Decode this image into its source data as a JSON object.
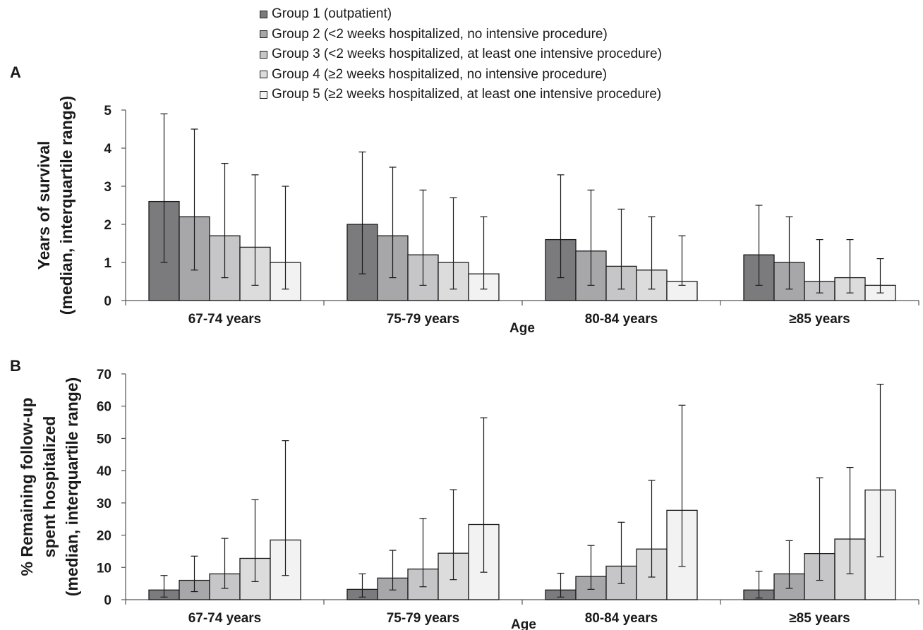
{
  "legend": [
    {
      "label": "Group 1 (outpatient)",
      "color": "#7b7b7d"
    },
    {
      "label": "Group 2 (<2 weeks hospitalized, no intensive procedure)",
      "color": "#a7a7a9"
    },
    {
      "label": "Group 3 (<2 weeks hospitalized, at least one intensive procedure)",
      "color": "#c6c6c8"
    },
    {
      "label": "Group 4 (≥2 weeks hospitalized, no intensive procedure)",
      "color": "#dcdcdd"
    },
    {
      "label": "Group 5 (≥2 weeks hospitalized, at least one intensive procedure)",
      "color": "#f2f2f2"
    }
  ],
  "panels": {
    "a": "A",
    "b": "B"
  },
  "chart_data": [
    {
      "type": "bar",
      "panel": "A",
      "categories": [
        "67-74 years",
        "75-79 years",
        "80-84 years",
        "≥85 years"
      ],
      "xlabel": "Age",
      "ylabel": [
        "Years of survival",
        "(median, interquartile range)"
      ],
      "ylim": [
        0,
        5
      ],
      "yticks": [
        0,
        1,
        2,
        3,
        4,
        5
      ],
      "grid": false,
      "legend_position": "top",
      "series": [
        {
          "name": "Group 1 (outpatient)",
          "values": [
            2.6,
            2.0,
            1.6,
            1.2
          ],
          "low": [
            1.0,
            0.7,
            0.6,
            0.4
          ],
          "high": [
            4.9,
            3.9,
            3.3,
            2.5
          ]
        },
        {
          "name": "Group 2 (<2 weeks hospitalized, no intensive procedure)",
          "values": [
            2.2,
            1.7,
            1.3,
            1.0
          ],
          "low": [
            0.8,
            0.6,
            0.4,
            0.3
          ],
          "high": [
            4.5,
            3.5,
            2.9,
            2.2
          ]
        },
        {
          "name": "Group 3 (<2 weeks hospitalized, at least one intensive procedure)",
          "values": [
            1.7,
            1.2,
            0.9,
            0.5
          ],
          "low": [
            0.6,
            0.4,
            0.3,
            0.2
          ],
          "high": [
            3.6,
            2.9,
            2.4,
            1.6
          ]
        },
        {
          "name": "Group 4 (≥2 weeks hospitalized, no intensive procedure)",
          "values": [
            1.4,
            1.0,
            0.8,
            0.6
          ],
          "low": [
            0.4,
            0.3,
            0.3,
            0.2
          ],
          "high": [
            3.3,
            2.7,
            2.2,
            1.6
          ]
        },
        {
          "name": "Group 5 (≥2 weeks hospitalized, at least one intensive procedure)",
          "values": [
            1.0,
            0.7,
            0.5,
            0.4
          ],
          "low": [
            0.3,
            0.3,
            0.4,
            0.2
          ],
          "high": [
            3.0,
            2.2,
            1.7,
            1.1
          ]
        }
      ]
    },
    {
      "type": "bar",
      "panel": "B",
      "categories": [
        "67-74 years",
        "75-79 years",
        "80-84 years",
        "≥85 years"
      ],
      "xlabel": "Age",
      "ylabel": [
        "% Remaining follow-up",
        "spent hospitalized",
        "(median, interquartile range)"
      ],
      "ylim": [
        0,
        70
      ],
      "yticks": [
        0,
        10,
        20,
        30,
        40,
        50,
        60,
        70
      ],
      "grid": false,
      "series": [
        {
          "name": "Group 1 (outpatient)",
          "values": [
            3.0,
            3.2,
            3.0,
            3.0
          ],
          "low": [
            0.8,
            0.8,
            0.8,
            0.5
          ],
          "high": [
            7.5,
            8.0,
            8.2,
            8.8
          ]
        },
        {
          "name": "Group 2 (<2 weeks hospitalized, no intensive procedure)",
          "values": [
            6.0,
            6.7,
            7.2,
            8.0
          ],
          "low": [
            2.5,
            3.0,
            3.2,
            3.5
          ],
          "high": [
            13.5,
            15.3,
            16.8,
            18.3
          ]
        },
        {
          "name": "Group 3 (<2 weeks hospitalized, at least one intensive procedure)",
          "values": [
            8.0,
            9.5,
            10.4,
            14.3
          ],
          "low": [
            3.5,
            4.0,
            5.0,
            6.0
          ],
          "high": [
            19.0,
            25.2,
            24.0,
            37.8
          ]
        },
        {
          "name": "Group 4 (≥2 weeks hospitalized, no intensive procedure)",
          "values": [
            12.8,
            14.4,
            15.7,
            18.8
          ],
          "low": [
            5.6,
            6.2,
            7.0,
            8.0
          ],
          "high": [
            31.0,
            34.1,
            37.0,
            41.0
          ]
        },
        {
          "name": "Group 5 (≥2 weeks hospitalized, at least one intensive procedure)",
          "values": [
            18.5,
            23.3,
            27.7,
            34.0
          ],
          "low": [
            7.5,
            8.5,
            10.3,
            13.3
          ],
          "high": [
            49.3,
            56.4,
            60.3,
            66.8
          ]
        }
      ]
    }
  ]
}
